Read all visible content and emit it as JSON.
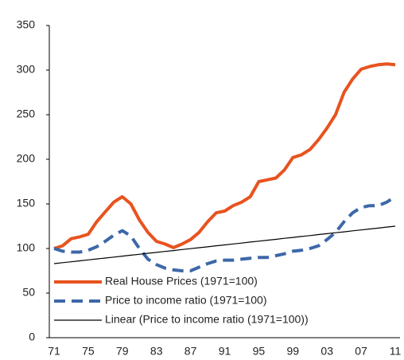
{
  "chart_data": {
    "type": "line",
    "categories": [
      "71",
      null,
      null,
      null,
      "75",
      null,
      null,
      null,
      "79",
      null,
      null,
      null,
      "83",
      null,
      null,
      null,
      "87",
      null,
      null,
      null,
      "91",
      null,
      null,
      null,
      "95",
      null,
      null,
      null,
      "99",
      null,
      null,
      null,
      "03",
      null,
      null,
      null,
      "07",
      null,
      null,
      null,
      "11"
    ],
    "series": [
      {
        "name": "Real House Prices (1971=100)",
        "color": "#e8531f",
        "style": "solid",
        "width": 4,
        "values": [
          100,
          103,
          111,
          113,
          116,
          130,
          141,
          152,
          158,
          150,
          132,
          118,
          108,
          105,
          101,
          105,
          110,
          118,
          130,
          140,
          142,
          148,
          152,
          158,
          175,
          177,
          179,
          188,
          202,
          205,
          211,
          222,
          235,
          250,
          275,
          290,
          301,
          304,
          306,
          307,
          306
        ]
      },
      {
        "name": "Price to income ratio (1971=100)",
        "color": "#3d68a8",
        "style": "dashed",
        "width": 4,
        "values": [
          100,
          97,
          96,
          96,
          98,
          102,
          108,
          115,
          120,
          114,
          100,
          88,
          82,
          78,
          76,
          75,
          75,
          79,
          83,
          86,
          87,
          87,
          88,
          89,
          90,
          90,
          92,
          94,
          97,
          98,
          100,
          103,
          110,
          118,
          130,
          140,
          146,
          148,
          148,
          152,
          158
        ]
      },
      {
        "name": "Linear (Price to income ratio (1971=100))",
        "color": "#000000",
        "style": "solid",
        "width": 1.2,
        "values": [
          83.0,
          84.1,
          85.1,
          86.2,
          87.2,
          88.3,
          89.3,
          90.4,
          91.4,
          92.5,
          93.5,
          94.6,
          95.6,
          96.7,
          97.7,
          98.8,
          99.8,
          100.9,
          101.9,
          103.0,
          104.0,
          105.1,
          106.1,
          107.2,
          108.2,
          109.3,
          110.3,
          111.4,
          112.4,
          113.5,
          114.5,
          115.6,
          116.6,
          117.7,
          118.7,
          119.8,
          120.8,
          121.9,
          122.9,
          124.0,
          125.0
        ]
      }
    ],
    "ylim": [
      0,
      350
    ],
    "yticks": [
      0,
      50,
      100,
      150,
      200,
      250,
      300,
      350
    ],
    "grid": false,
    "legend": "lower left"
  }
}
